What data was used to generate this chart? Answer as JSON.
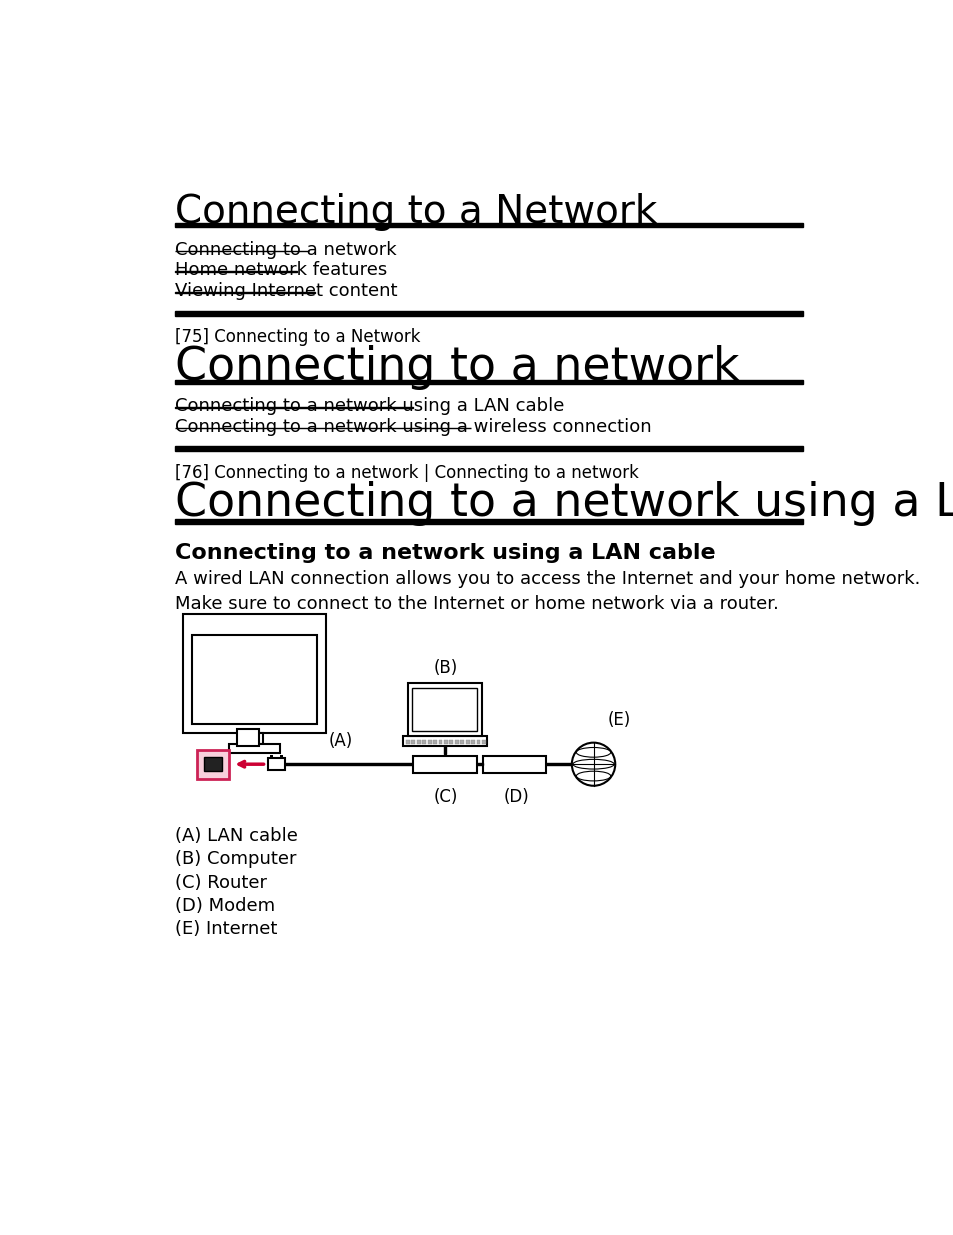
{
  "bg_color": "#ffffff",
  "title_main": "Connecting to a Network",
  "links_section1": [
    "Connecting to a network",
    "Home network features",
    "Viewing Internet content"
  ],
  "section2_tag": "[75] Connecting to a Network",
  "section2_title": "Connecting to a network",
  "links_section2": [
    "Connecting to a network using a LAN cable",
    "Connecting to a network using a wireless connection"
  ],
  "section3_tag": "[76] Connecting to a network | Connecting to a network",
  "section3_title": "Connecting to a network using a LAN cable",
  "subsection_title": "Connecting to a network using a LAN cable",
  "body_text1": "A wired LAN connection allows you to access the Internet and your home network.",
  "body_text2": "Make sure to connect to the Internet or home network via a router.",
  "labels": [
    "(A)",
    "(B)",
    "(C)",
    "(D)",
    "(E)"
  ],
  "legend": [
    "(A) LAN cable",
    "(B) Computer",
    "(C) Router",
    "(D) Modem",
    "(E) Internet"
  ]
}
